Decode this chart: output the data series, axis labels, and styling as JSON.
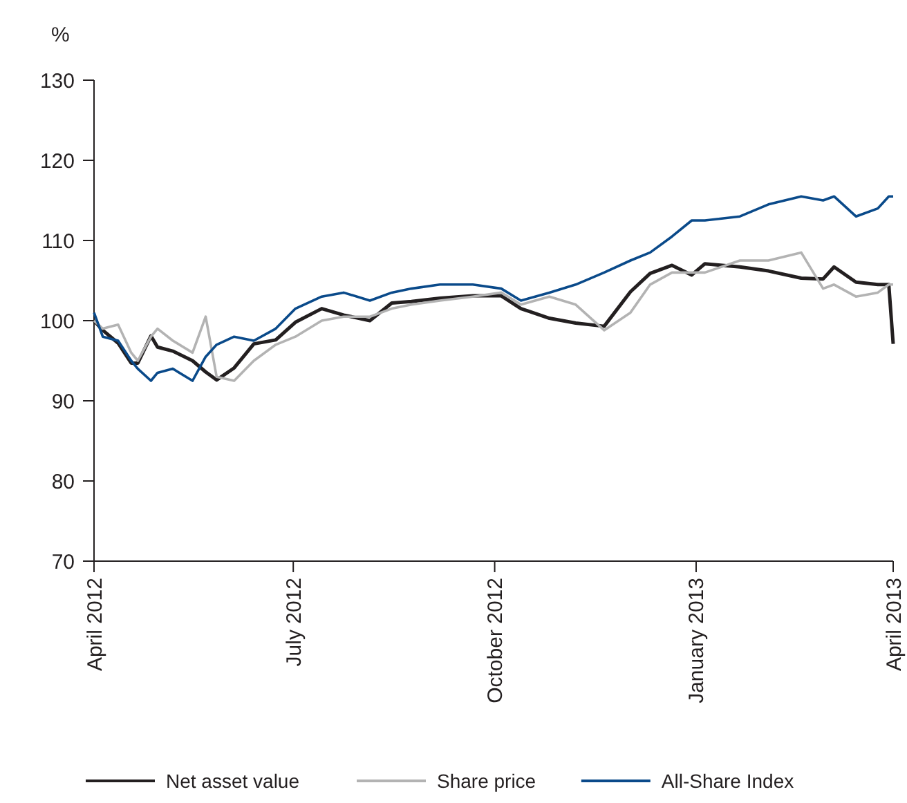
{
  "chart_data": {
    "type": "line",
    "ylabel": "%",
    "x": [
      "2012-04-01",
      "2012-04-05",
      "2012-04-12",
      "2012-04-18",
      "2012-04-21",
      "2012-04-27",
      "2012-04-30",
      "2012-05-07",
      "2012-05-16",
      "2012-05-22",
      "2012-05-27",
      "2012-06-04",
      "2012-06-13",
      "2012-06-23",
      "2012-07-02",
      "2012-07-14",
      "2012-07-24",
      "2012-08-05",
      "2012-08-15",
      "2012-08-24",
      "2012-09-06",
      "2012-09-21",
      "2012-10-04",
      "2012-10-13",
      "2012-10-26",
      "2012-11-07",
      "2012-11-20",
      "2012-12-02",
      "2012-12-11",
      "2012-12-21",
      "2012-12-30",
      "2013-01-05",
      "2013-01-21",
      "2013-02-03",
      "2013-02-18",
      "2013-02-28",
      "2013-03-05",
      "2013-03-15",
      "2013-03-25",
      "2013-03-30",
      "2013-04-01"
    ],
    "series": [
      {
        "name": "Net asset value",
        "color": "#231f20",
        "values": [
          100,
          98.8,
          97.2,
          94.7,
          94.7,
          98.1,
          96.7,
          96.2,
          95,
          93.6,
          92.6,
          94.1,
          97.1,
          97.6,
          99.8,
          101.5,
          100.7,
          100,
          102.2,
          102.4,
          102.8,
          103.1,
          103.1,
          101.5,
          100.3,
          99.7,
          99.3,
          103.6,
          105.9,
          106.9,
          105.7,
          107.1,
          106.7,
          106.2,
          105.3,
          105.2,
          106.7,
          104.8,
          104.5,
          104.5,
          97.1
        ]
      },
      {
        "name": "Share price",
        "color": "#b3b3b3",
        "values": [
          100,
          99,
          99.5,
          96,
          95,
          98,
          99,
          97.5,
          96,
          100.5,
          93,
          92.5,
          95,
          97,
          98,
          100,
          100.5,
          100.5,
          101.5,
          102,
          102.5,
          103,
          103.5,
          102,
          103,
          102,
          98.8,
          101,
          104.5,
          106,
          106,
          106,
          107.5,
          107.5,
          108.5,
          104,
          104.5,
          103,
          103.5,
          104.5,
          104.5
        ]
      },
      {
        "name": "All-Share Index",
        "color": "#0a4a8a",
        "values": [
          101,
          98,
          97.5,
          95,
          94,
          92.5,
          93.5,
          94,
          92.5,
          95.5,
          97,
          98,
          97.5,
          99,
          101.5,
          103,
          103.5,
          102.5,
          103.5,
          104,
          104.5,
          104.5,
          104,
          102.5,
          103.5,
          104.5,
          106,
          107.5,
          108.5,
          110.5,
          112.5,
          112.5,
          113,
          114.5,
          115.5,
          115,
          115.5,
          113,
          114,
          115.5,
          115.5
        ]
      }
    ],
    "xlim": [
      "2012-04-01",
      "2013-04-01"
    ],
    "xticks": [
      {
        "value": "2012-04-01",
        "label": "April 2012"
      },
      {
        "value": "2012-07-01",
        "label": "July 2012"
      },
      {
        "value": "2012-10-01",
        "label": "October 2012"
      },
      {
        "value": "2013-01-01",
        "label": "January 2013"
      },
      {
        "value": "2013-04-01",
        "label": "April 2013"
      }
    ],
    "ylim": [
      70,
      130
    ],
    "yticks": [
      70,
      80,
      90,
      100,
      110,
      120,
      130
    ],
    "grid": false,
    "legend": "bottom",
    "marker": "none",
    "line_style": "solid"
  }
}
